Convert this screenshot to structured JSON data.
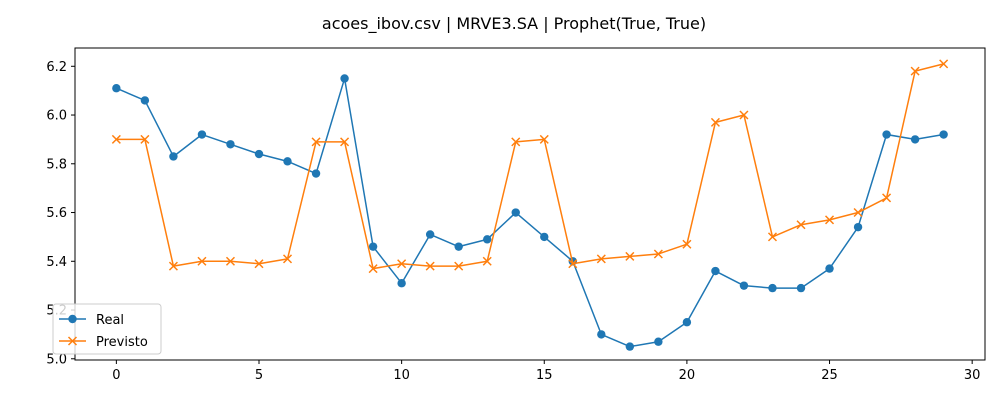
{
  "title": "acoes_ibov.csv | MRVE3.SA | Prophet(True, True)",
  "colors": {
    "real": "#1f77b4",
    "previsto": "#ff7f0e",
    "axis": "#000000",
    "legend_border": "#cccccc"
  },
  "chart_data": {
    "type": "line",
    "title": "acoes_ibov.csv | MRVE3.SA | Prophet(True, True)",
    "xlabel": "",
    "ylabel": "",
    "x": [
      0,
      1,
      2,
      3,
      4,
      5,
      6,
      7,
      8,
      9,
      10,
      11,
      12,
      13,
      14,
      15,
      16,
      17,
      18,
      19,
      20,
      21,
      22,
      23,
      24,
      25,
      26,
      27,
      28,
      29
    ],
    "xlim": [
      -1.45,
      30.45
    ],
    "ylim": [
      4.995,
      6.275
    ],
    "xticks": [
      0,
      5,
      10,
      15,
      20,
      25,
      30
    ],
    "xtick_labels": [
      "0",
      "5",
      "10",
      "15",
      "20",
      "25",
      "30"
    ],
    "yticks": [
      5.0,
      5.2,
      5.4,
      5.6,
      5.8,
      6.0,
      6.2
    ],
    "ytick_labels": [
      "5.0",
      "5.2",
      "5.4",
      "5.6",
      "5.8",
      "6.0",
      "6.2"
    ],
    "grid": false,
    "legend_position": "lower-left",
    "series": [
      {
        "name": "Real",
        "marker": "circle",
        "color": "#1f77b4",
        "values": [
          6.11,
          6.06,
          5.83,
          5.92,
          5.88,
          5.84,
          5.81,
          5.76,
          6.15,
          5.46,
          5.31,
          5.51,
          5.46,
          5.49,
          5.6,
          5.5,
          5.4,
          5.1,
          5.05,
          5.07,
          5.15,
          5.36,
          5.3,
          5.29,
          5.29,
          5.37,
          5.54,
          5.92,
          5.9,
          5.92
        ]
      },
      {
        "name": "Previsto",
        "marker": "x",
        "color": "#ff7f0e",
        "values": [
          5.9,
          5.9,
          5.38,
          5.4,
          5.4,
          5.39,
          5.41,
          5.89,
          5.89,
          5.37,
          5.39,
          5.38,
          5.38,
          5.4,
          5.89,
          5.9,
          5.39,
          5.41,
          5.42,
          5.43,
          5.47,
          5.97,
          6.0,
          5.5,
          5.55,
          5.57,
          5.6,
          5.66,
          6.18,
          6.21
        ]
      }
    ]
  }
}
